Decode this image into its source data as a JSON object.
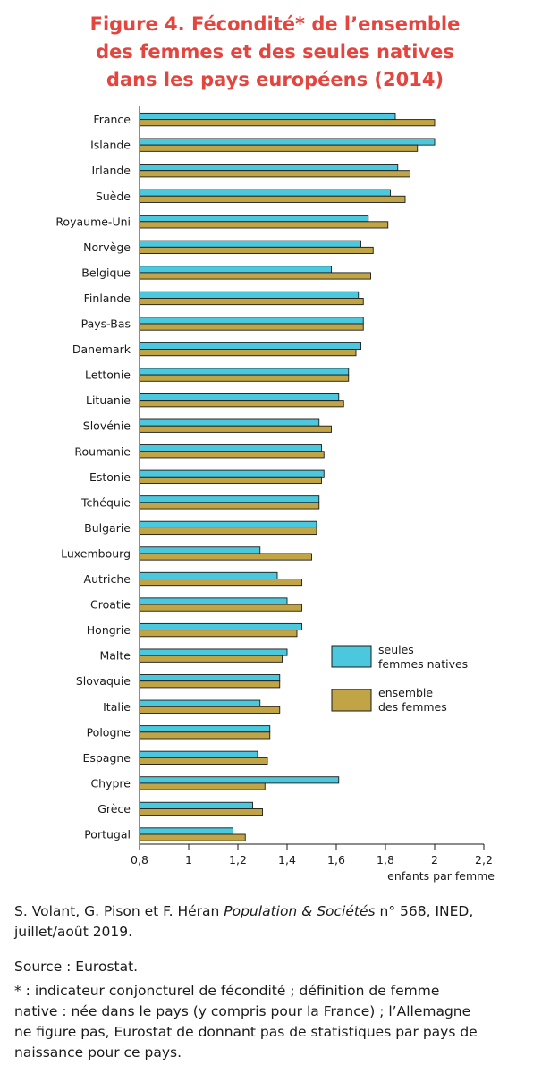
{
  "title": {
    "line1": "Figure 4. Fécondité* de l’ensemble",
    "line2": "des femmes et des seules natives",
    "line3": "dans les pays européens (2014)"
  },
  "colors": {
    "title": "#e4463f",
    "natives": "#4cc8de",
    "ensemble": "#c0a445"
  },
  "chart_data": {
    "type": "bar",
    "orientation": "horizontal",
    "title": "Figure 4. Fécondité* de l’ensemble des femmes et des seules natives dans les pays européens (2014)",
    "xlabel": "enfants par femme",
    "ylabel": "",
    "xlim": [
      0.8,
      2.2
    ],
    "xticks": [
      0.8,
      1,
      1.2,
      1.4,
      1.6,
      1.8,
      2,
      2.2
    ],
    "xtick_labels": [
      "0,8",
      "1",
      "1,2",
      "1,4",
      "1,6",
      "1,8",
      "2",
      "2,2"
    ],
    "grid": false,
    "legend_position": "right, lower middle",
    "categories": [
      "France",
      "Islande",
      "Irlande",
      "Suède",
      "Royaume-Uni",
      "Norvège",
      "Belgique",
      "Finlande",
      "Pays-Bas",
      "Danemark",
      "Lettonie",
      "Lituanie",
      "Slovénie",
      "Roumanie",
      "Estonie",
      "Tchéquie",
      "Bulgarie",
      "Luxembourg",
      "Autriche",
      "Croatie",
      "Hongrie",
      "Malte",
      "Slovaquie",
      "Italie",
      "Pologne",
      "Espagne",
      "Chypre",
      "Grèce",
      "Portugal"
    ],
    "series": [
      {
        "name": "seules femmes natives",
        "legend_lines": [
          "seules",
          "femmes natives"
        ],
        "color": "#4cc8de",
        "values": [
          1.84,
          2.0,
          1.85,
          1.82,
          1.73,
          1.7,
          1.58,
          1.69,
          1.71,
          1.7,
          1.65,
          1.61,
          1.53,
          1.54,
          1.55,
          1.53,
          1.52,
          1.29,
          1.36,
          1.4,
          1.46,
          1.4,
          1.37,
          1.29,
          1.33,
          1.28,
          1.61,
          1.26,
          1.18
        ]
      },
      {
        "name": "ensemble des femmes",
        "legend_lines": [
          "ensemble",
          "des femmes"
        ],
        "color": "#c0a445",
        "values": [
          2.0,
          1.93,
          1.9,
          1.88,
          1.81,
          1.75,
          1.74,
          1.71,
          1.71,
          1.68,
          1.65,
          1.63,
          1.58,
          1.55,
          1.54,
          1.53,
          1.52,
          1.5,
          1.46,
          1.46,
          1.44,
          1.38,
          1.37,
          1.37,
          1.33,
          1.32,
          1.31,
          1.3,
          1.23
        ]
      }
    ]
  },
  "footer": {
    "citation_authors": "S. Volant, G. Pison et F. Héran ",
    "citation_journal": "Population & Sociétés",
    "citation_rest": " n° 568, INED,",
    "citation_line2": "juillet/août 2019.",
    "source": "Source : Eurostat.",
    "note_line1": "* : indicateur conjoncturel de fécondité ; définition de femme",
    "note_line2": "native : née dans le pays (y compris pour la France) ;  l’Allemagne",
    "note_line3": "ne figure pas, Eurostat de donnant pas de statistiques par pays de",
    "note_line4": "naissance pour ce pays."
  }
}
